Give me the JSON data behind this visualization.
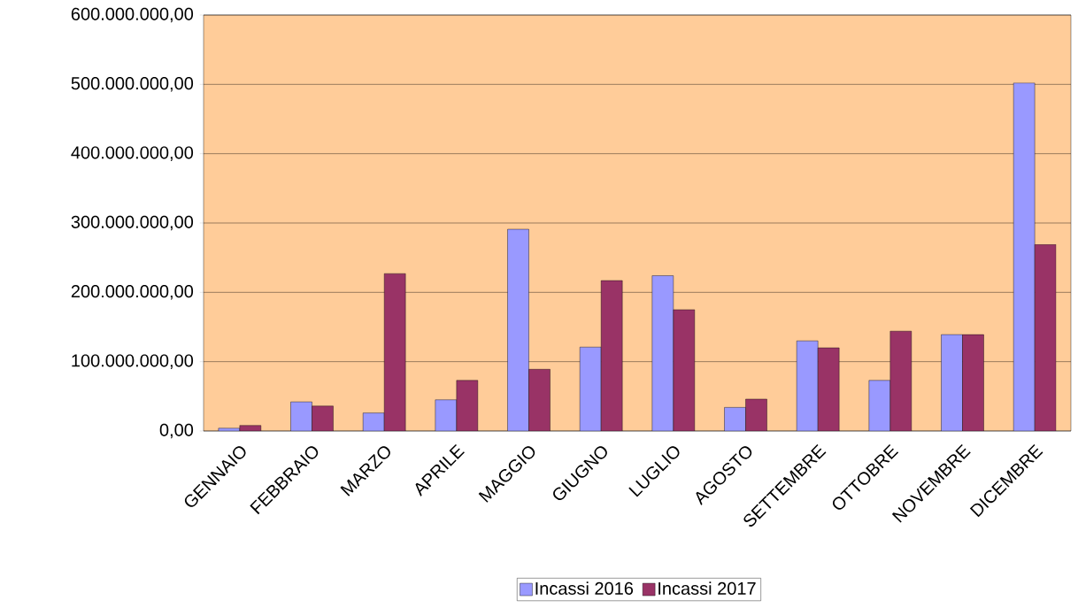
{
  "chart_data": {
    "type": "bar",
    "categories": [
      "GENNAIO",
      "FEBBRAIO",
      "MARZO",
      "APRILE",
      "MAGGIO",
      "GIUGNO",
      "LUGLIO",
      "AGOSTO",
      "SETTEMBRE",
      "OTTOBRE",
      "NOVEMBRE",
      "DICEMBRE"
    ],
    "series": [
      {
        "name": "Incassi 2016",
        "color": "#9999ff",
        "values": [
          4000000,
          42000000,
          26000000,
          45000000,
          291000000,
          121000000,
          224000000,
          34000000,
          130000000,
          73000000,
          139000000,
          502000000
        ]
      },
      {
        "name": "Incassi 2017",
        "color": "#993366",
        "values": [
          8000000,
          36000000,
          227000000,
          73000000,
          89000000,
          217000000,
          175000000,
          46000000,
          120000000,
          144000000,
          139000000,
          269000000
        ]
      }
    ],
    "ylim": [
      0,
      600000000
    ],
    "yticks": [
      {
        "value": 0,
        "label": "0,00"
      },
      {
        "value": 100000000,
        "label": "100.000.000,00"
      },
      {
        "value": 200000000,
        "label": "200.000.000,00"
      },
      {
        "value": 300000000,
        "label": "300.000.000,00"
      },
      {
        "value": 400000000,
        "label": "400.000.000,00"
      },
      {
        "value": 500000000,
        "label": "500.000.000,00"
      },
      {
        "value": 600000000,
        "label": "600.000.000,00"
      }
    ],
    "grid": "y",
    "legend": "bottom"
  }
}
